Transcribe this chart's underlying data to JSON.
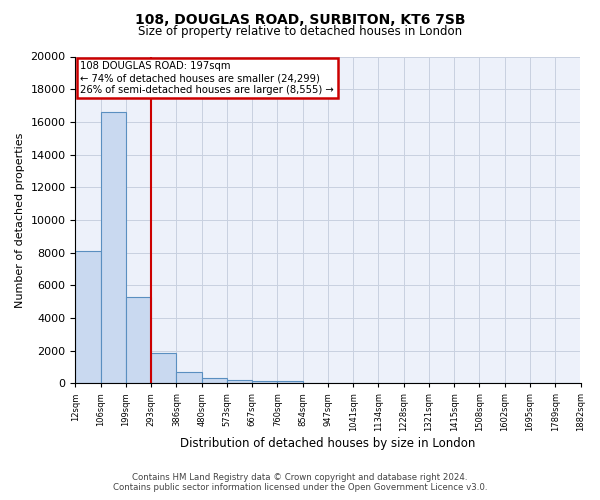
{
  "title1": "108, DOUGLAS ROAD, SURBITON, KT6 7SB",
  "title2": "Size of property relative to detached houses in London",
  "xlabel": "Distribution of detached houses by size in London",
  "ylabel": "Number of detached properties",
  "bar_heights": [
    8100,
    16600,
    5300,
    1850,
    700,
    330,
    230,
    170,
    130,
    0,
    0,
    0,
    0,
    0,
    0,
    0,
    0,
    0,
    0,
    0
  ],
  "bar_color": "#c9d9f0",
  "bar_edge_color": "#5a8fc0",
  "ylim": [
    0,
    20000
  ],
  "red_line_index": 2,
  "annotation_text_line1": "108 DOUGLAS ROAD: 197sqm",
  "annotation_text_line2": "← 74% of detached houses are smaller (24,299)",
  "annotation_text_line3": "26% of semi-detached houses are larger (8,555) →",
  "annotation_box_color": "#ffffff",
  "annotation_box_edge_color": "#cc0000",
  "red_line_color": "#cc0000",
  "grid_color": "#c8d0e0",
  "background_color": "#edf1fa",
  "footer_line1": "Contains HM Land Registry data © Crown copyright and database right 2024.",
  "footer_line2": "Contains public sector information licensed under the Open Government Licence v3.0.",
  "tick_labels": [
    "12sqm",
    "106sqm",
    "199sqm",
    "293sqm",
    "386sqm",
    "480sqm",
    "573sqm",
    "667sqm",
    "760sqm",
    "854sqm",
    "947sqm",
    "1041sqm",
    "1134sqm",
    "1228sqm",
    "1321sqm",
    "1415sqm",
    "1508sqm",
    "1602sqm",
    "1695sqm",
    "1789sqm",
    "1882sqm"
  ],
  "yticks": [
    0,
    2000,
    4000,
    6000,
    8000,
    10000,
    12000,
    14000,
    16000,
    18000,
    20000
  ]
}
